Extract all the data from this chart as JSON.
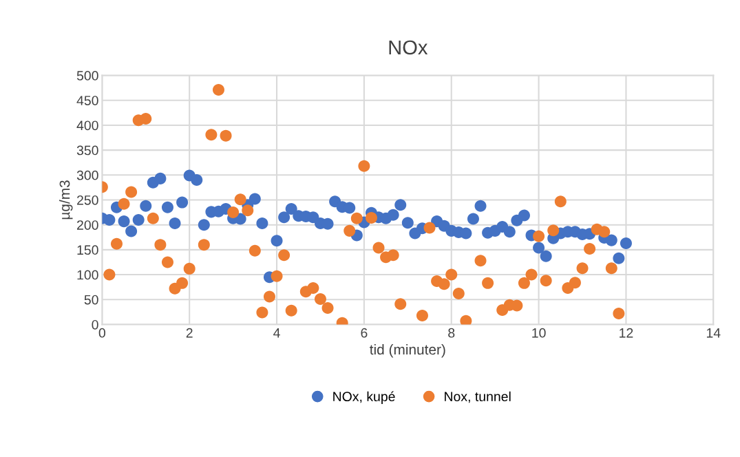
{
  "chart_data": {
    "type": "scatter",
    "title": "NOx",
    "xlabel": "tid (minuter)",
    "ylabel": "µg/m3",
    "x": [
      0,
      0.1667,
      0.3333,
      0.5,
      0.6667,
      0.8333,
      1,
      1.1667,
      1.3333,
      1.5,
      1.6667,
      1.8333,
      2,
      2.1667,
      2.3333,
      2.5,
      2.6667,
      2.8333,
      3,
      3.1667,
      3.3333,
      3.5,
      3.6667,
      3.8333,
      4,
      4.1667,
      4.3333,
      4.5,
      4.6667,
      4.8333,
      5,
      5.1667,
      5.3333,
      5.5,
      5.6667,
      5.8333,
      6,
      6.1667,
      6.3333,
      6.5,
      6.6667,
      6.8333,
      7,
      7.1667,
      7.3333,
      7.5,
      7.6667,
      7.8333,
      8,
      8.1667,
      8.3333,
      8.5,
      8.6667,
      8.8333,
      9,
      9.1667,
      9.3333,
      9.5,
      9.6667,
      9.8333,
      10,
      10.1667,
      10.3333,
      10.5,
      10.6667,
      10.8333,
      11,
      11.1667,
      11.3333,
      11.5,
      11.6667,
      11.8333,
      12
    ],
    "series": [
      {
        "name": "NOx, kupé",
        "color": "#4472c4",
        "values": [
          213,
          210,
          235,
          207,
          187,
          210,
          238,
          285,
          293,
          235,
          203,
          245,
          299,
          290,
          200,
          226,
          227,
          232,
          213,
          212,
          240,
          252,
          203,
          95,
          168,
          215,
          232,
          218,
          217,
          215,
          203,
          202,
          247,
          236,
          234,
          179,
          205,
          224,
          215,
          213,
          220,
          240,
          204,
          183,
          193,
          null,
          207,
          198,
          188,
          185,
          183,
          212,
          238,
          184,
          188,
          196,
          186,
          209,
          219,
          179,
          154,
          137,
          173,
          183,
          186,
          186,
          181,
          182,
          null,
          174,
          169,
          133,
          163
        ]
      },
      {
        "name": "Nox, tunnel",
        "color": "#ed7d31",
        "values": [
          276,
          100,
          162,
          242,
          266,
          410,
          413,
          213,
          160,
          125,
          72,
          83,
          112,
          null,
          160,
          381,
          471,
          379,
          225,
          251,
          229,
          148,
          24,
          56,
          97,
          139,
          28,
          null,
          66,
          73,
          51,
          33,
          null,
          3,
          188,
          213,
          318,
          214,
          154,
          135,
          139,
          41,
          null,
          null,
          18,
          194,
          87,
          81,
          100,
          62,
          7,
          null,
          128,
          83,
          null,
          29,
          39,
          38,
          83,
          100,
          177,
          88,
          189,
          247,
          73,
          84,
          113,
          152,
          191,
          186,
          113,
          22,
          null
        ]
      }
    ],
    "xlim": [
      0,
      14
    ],
    "xticks": [
      0,
      2,
      4,
      6,
      8,
      10,
      12,
      14
    ],
    "ylim": [
      0,
      500
    ],
    "yticks": [
      0,
      50,
      100,
      150,
      200,
      250,
      300,
      350,
      400,
      450,
      500
    ],
    "grid": true,
    "legend": "bottom",
    "marker": "circle"
  }
}
